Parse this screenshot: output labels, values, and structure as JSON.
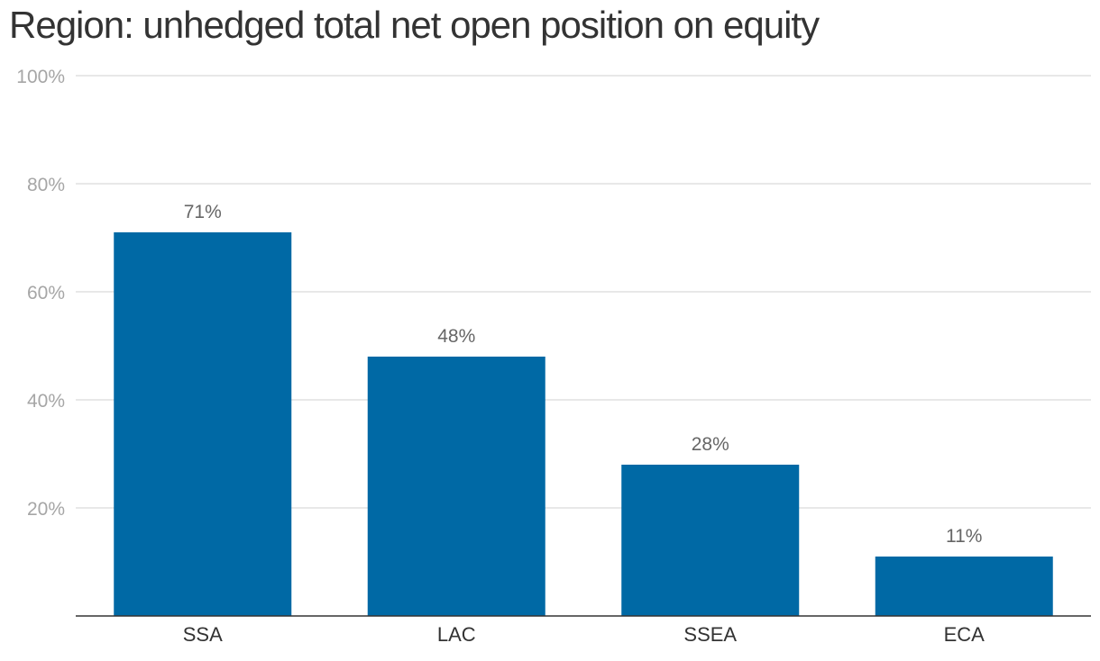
{
  "chart_data": {
    "type": "bar",
    "title": "Region: unhedged total net open position on equity",
    "categories": [
      "SSA",
      "LAC",
      "SSEA",
      "ECA"
    ],
    "values": [
      71,
      48,
      28,
      11
    ],
    "data_labels": [
      "71%",
      "48%",
      "28%",
      "11%"
    ],
    "ylim": [
      0,
      100
    ],
    "y_ticks": [
      20,
      40,
      60,
      80,
      100
    ],
    "y_tick_labels": [
      "20%",
      "40%",
      "60%",
      "80%",
      "100%"
    ],
    "grid": true,
    "legend": "none",
    "bar_color": "#0069a5"
  }
}
